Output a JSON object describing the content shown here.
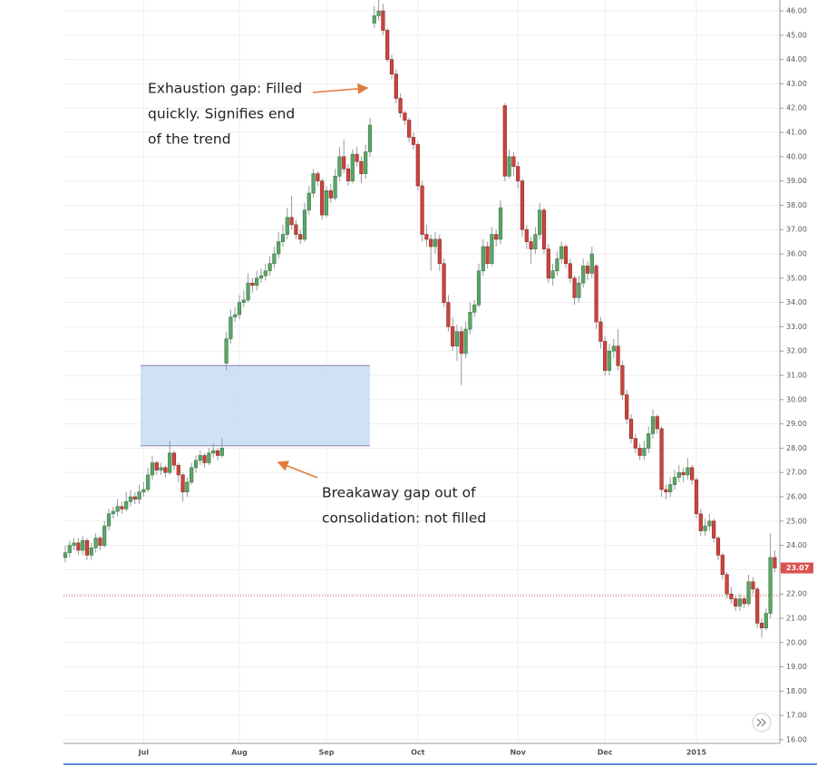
{
  "chart_data": {
    "type": "candlestick",
    "ylim": [
      15.85,
      46.45
    ],
    "yticks": [
      {
        "value": 16,
        "label": "16.00"
      },
      {
        "value": 17,
        "label": "17.00"
      },
      {
        "value": 18,
        "label": "18.00"
      },
      {
        "value": 19,
        "label": "19.00"
      },
      {
        "value": 20,
        "label": "20.00"
      },
      {
        "value": 21,
        "label": "21.00"
      },
      {
        "value": 22,
        "label": "22.00"
      },
      {
        "value": 23,
        "label": "23.00"
      },
      {
        "value": 24,
        "label": "24.00"
      },
      {
        "value": 25,
        "label": "25.00"
      },
      {
        "value": 26,
        "label": "26.00"
      },
      {
        "value": 27,
        "label": "27.00"
      },
      {
        "value": 28,
        "label": "28.00"
      },
      {
        "value": 29,
        "label": "29.00"
      },
      {
        "value": 30,
        "label": "30.00"
      },
      {
        "value": 31,
        "label": "31.00"
      },
      {
        "value": 32,
        "label": "32.00"
      },
      {
        "value": 33,
        "label": "33.00"
      },
      {
        "value": 34,
        "label": "34.00"
      },
      {
        "value": 35,
        "label": "35.00"
      },
      {
        "value": 36,
        "label": "36.00"
      },
      {
        "value": 37,
        "label": "37.00"
      },
      {
        "value": 38,
        "label": "38.00"
      },
      {
        "value": 39,
        "label": "39.00"
      },
      {
        "value": 40,
        "label": "40.00"
      },
      {
        "value": 41,
        "label": "41.00"
      },
      {
        "value": 42,
        "label": "42.00"
      },
      {
        "value": 43,
        "label": "43.00"
      },
      {
        "value": 44,
        "label": "44.00"
      },
      {
        "value": 45,
        "label": "45.00"
      },
      {
        "value": 46,
        "label": "46.00"
      }
    ],
    "grid": true,
    "categories": [
      null,
      null,
      null,
      null,
      null,
      null,
      null,
      null,
      null,
      null,
      null,
      null,
      null,
      null,
      null,
      null,
      null,
      null,
      "Jul",
      null,
      null,
      null,
      null,
      null,
      null,
      null,
      null,
      null,
      null,
      null,
      null,
      null,
      null,
      null,
      null,
      null,
      null,
      null,
      null,
      null,
      "Aug",
      null,
      null,
      null,
      null,
      null,
      null,
      null,
      null,
      null,
      null,
      null,
      null,
      null,
      null,
      null,
      null,
      null,
      null,
      null,
      "Sep",
      null,
      null,
      null,
      null,
      null,
      null,
      null,
      null,
      null,
      null,
      null,
      null,
      null,
      null,
      null,
      null,
      null,
      null,
      null,
      null,
      "Oct",
      null,
      null,
      null,
      null,
      null,
      null,
      null,
      null,
      null,
      null,
      null,
      null,
      null,
      null,
      null,
      null,
      null,
      null,
      null,
      null,
      null,
      null,
      "Nov",
      null,
      null,
      null,
      null,
      null,
      null,
      null,
      null,
      null,
      null,
      null,
      null,
      null,
      null,
      null,
      null,
      null,
      null,
      null,
      "Dec",
      null,
      null,
      null,
      null,
      null,
      null,
      null,
      null,
      null,
      null,
      null,
      null,
      null,
      null,
      null,
      null,
      null,
      null,
      null,
      null,
      "2015",
      null,
      null,
      null,
      null,
      null,
      null,
      null,
      null,
      null,
      null,
      null,
      null,
      null,
      null,
      null,
      null,
      null,
      null
    ],
    "up_color": "#5da46a",
    "down_color": "#c9453d",
    "ohlc": [
      [
        23.5,
        24.0,
        23.3,
        23.7
      ],
      [
        23.7,
        24.2,
        23.5,
        24.0
      ],
      [
        24.0,
        24.3,
        23.8,
        24.1
      ],
      [
        24.1,
        24.3,
        23.6,
        23.8
      ],
      [
        23.8,
        24.4,
        23.6,
        24.2
      ],
      [
        24.2,
        24.3,
        23.4,
        23.6
      ],
      [
        23.6,
        24.1,
        23.4,
        23.9
      ],
      [
        23.9,
        24.5,
        23.7,
        24.3
      ],
      [
        24.3,
        24.4,
        23.8,
        24.0
      ],
      [
        24.0,
        25.0,
        23.9,
        24.8
      ],
      [
        24.8,
        25.5,
        24.6,
        25.3
      ],
      [
        25.3,
        25.6,
        25.1,
        25.4
      ],
      [
        25.4,
        25.9,
        25.2,
        25.6
      ],
      [
        25.6,
        25.8,
        25.3,
        25.5
      ],
      [
        25.5,
        26.2,
        25.4,
        25.8
      ],
      [
        25.8,
        26.3,
        25.6,
        26.0
      ],
      [
        26.0,
        26.2,
        25.7,
        25.9
      ],
      [
        25.9,
        26.5,
        25.7,
        26.2
      ],
      [
        26.2,
        26.6,
        26.0,
        26.3
      ],
      [
        26.3,
        27.2,
        26.2,
        26.9
      ],
      [
        26.9,
        27.7,
        26.7,
        27.4
      ],
      [
        27.4,
        27.5,
        26.9,
        27.1
      ],
      [
        27.1,
        27.4,
        26.9,
        27.2
      ],
      [
        27.2,
        27.3,
        26.8,
        27.0
      ],
      [
        27.0,
        28.3,
        26.9,
        27.8
      ],
      [
        27.8,
        27.9,
        27.1,
        27.3
      ],
      [
        27.3,
        27.4,
        26.6,
        26.9
      ],
      [
        26.9,
        27.0,
        25.8,
        26.2
      ],
      [
        26.2,
        26.8,
        26.0,
        26.6
      ],
      [
        26.6,
        27.4,
        26.5,
        27.2
      ],
      [
        27.2,
        27.7,
        27.0,
        27.5
      ],
      [
        27.5,
        27.9,
        27.3,
        27.7
      ],
      [
        27.7,
        27.8,
        27.2,
        27.4
      ],
      [
        27.4,
        28.0,
        27.3,
        27.8
      ],
      [
        27.8,
        28.2,
        27.6,
        27.9
      ],
      [
        27.9,
        28.0,
        27.5,
        27.7
      ],
      [
        27.7,
        28.4,
        27.6,
        28.0
      ],
      [
        31.5,
        32.8,
        31.2,
        32.5
      ],
      [
        32.5,
        33.7,
        32.3,
        33.4
      ],
      [
        33.4,
        33.8,
        33.2,
        33.5
      ],
      [
        33.5,
        34.3,
        33.3,
        34.0
      ],
      [
        34.0,
        34.5,
        33.8,
        34.1
      ],
      [
        34.1,
        35.2,
        34.0,
        34.8
      ],
      [
        34.8,
        35.0,
        34.4,
        34.7
      ],
      [
        34.7,
        35.3,
        34.5,
        35.0
      ],
      [
        35.0,
        35.4,
        34.8,
        35.1
      ],
      [
        35.1,
        35.6,
        34.9,
        35.3
      ],
      [
        35.3,
        35.9,
        35.1,
        35.6
      ],
      [
        35.6,
        36.3,
        35.4,
        36.0
      ],
      [
        36.0,
        36.9,
        35.8,
        36.5
      ],
      [
        36.5,
        37.2,
        36.3,
        36.8
      ],
      [
        36.8,
        37.9,
        36.6,
        37.5
      ],
      [
        37.5,
        38.4,
        37.0,
        37.2
      ],
      [
        37.2,
        37.4,
        36.6,
        36.8
      ],
      [
        36.8,
        37.0,
        36.4,
        36.6
      ],
      [
        36.6,
        38.1,
        36.5,
        37.8
      ],
      [
        37.8,
        38.8,
        37.6,
        38.5
      ],
      [
        38.5,
        39.5,
        38.3,
        39.3
      ],
      [
        39.3,
        39.4,
        38.8,
        39.0
      ],
      [
        39.0,
        39.1,
        37.4,
        37.6
      ],
      [
        37.6,
        38.8,
        37.5,
        38.6
      ],
      [
        38.6,
        38.9,
        38.1,
        38.3
      ],
      [
        38.3,
        39.5,
        38.2,
        39.2
      ],
      [
        39.2,
        40.4,
        39.0,
        40.0
      ],
      [
        40.0,
        40.7,
        39.3,
        39.5
      ],
      [
        39.5,
        39.7,
        38.8,
        39.0
      ],
      [
        39.0,
        40.3,
        38.9,
        40.1
      ],
      [
        40.1,
        40.4,
        39.6,
        39.8
      ],
      [
        39.8,
        40.0,
        38.9,
        39.3
      ],
      [
        39.3,
        40.5,
        39.1,
        40.2
      ],
      [
        40.2,
        41.6,
        40.0,
        41.3
      ],
      [
        45.5,
        46.2,
        45.3,
        45.8
      ],
      [
        45.8,
        46.6,
        45.6,
        46.0
      ],
      [
        46.0,
        46.3,
        45.0,
        45.2
      ],
      [
        45.2,
        45.3,
        43.9,
        44.0
      ],
      [
        44.0,
        44.2,
        43.2,
        43.4
      ],
      [
        43.4,
        43.6,
        42.2,
        42.4
      ],
      [
        42.4,
        42.6,
        41.6,
        41.8
      ],
      [
        41.8,
        41.9,
        41.3,
        41.5
      ],
      [
        41.5,
        41.6,
        40.6,
        40.8
      ],
      [
        40.8,
        41.0,
        40.3,
        40.5
      ],
      [
        40.5,
        40.6,
        38.6,
        38.8
      ],
      [
        38.8,
        39.0,
        36.5,
        36.8
      ],
      [
        36.8,
        37.2,
        36.3,
        36.6
      ],
      [
        36.6,
        36.8,
        35.3,
        36.3
      ],
      [
        36.3,
        36.9,
        36.0,
        36.6
      ],
      [
        36.6,
        36.8,
        35.3,
        35.6
      ],
      [
        35.6,
        35.8,
        33.8,
        34.0
      ],
      [
        34.0,
        34.3,
        32.8,
        33.0
      ],
      [
        33.0,
        33.4,
        32.0,
        32.2
      ],
      [
        32.2,
        33.1,
        31.6,
        32.8
      ],
      [
        32.8,
        33.0,
        30.6,
        31.9
      ],
      [
        31.9,
        33.2,
        31.7,
        32.9
      ],
      [
        32.9,
        34.0,
        32.7,
        33.6
      ],
      [
        33.6,
        34.1,
        33.4,
        33.9
      ],
      [
        33.9,
        35.6,
        33.8,
        35.3
      ],
      [
        35.3,
        36.6,
        35.1,
        36.3
      ],
      [
        36.3,
        36.5,
        35.4,
        35.6
      ],
      [
        35.6,
        37.1,
        35.5,
        36.8
      ],
      [
        36.8,
        37.0,
        36.3,
        36.6
      ],
      [
        36.6,
        38.2,
        36.4,
        37.9
      ],
      [
        42.1,
        42.2,
        39.0,
        39.2
      ],
      [
        39.2,
        40.3,
        39.1,
        40.0
      ],
      [
        40.0,
        40.2,
        39.2,
        39.6
      ],
      [
        39.6,
        39.8,
        38.7,
        39.0
      ],
      [
        39.0,
        39.1,
        36.7,
        37.0
      ],
      [
        37.0,
        37.2,
        36.2,
        36.5
      ],
      [
        36.5,
        36.7,
        35.6,
        36.2
      ],
      [
        36.2,
        37.1,
        36.0,
        36.8
      ],
      [
        36.8,
        38.1,
        36.6,
        37.8
      ],
      [
        37.8,
        37.9,
        36.0,
        36.2
      ],
      [
        36.2,
        36.4,
        34.8,
        35.0
      ],
      [
        35.0,
        35.6,
        34.7,
        35.3
      ],
      [
        35.3,
        36.1,
        35.1,
        35.8
      ],
      [
        35.8,
        36.5,
        35.6,
        36.3
      ],
      [
        36.3,
        36.4,
        35.4,
        35.6
      ],
      [
        35.6,
        35.8,
        34.8,
        35.0
      ],
      [
        35.0,
        35.1,
        33.9,
        34.2
      ],
      [
        34.2,
        35.1,
        34.0,
        34.8
      ],
      [
        34.8,
        35.8,
        34.6,
        35.5
      ],
      [
        35.5,
        35.7,
        34.9,
        35.2
      ],
      [
        35.2,
        36.3,
        35.0,
        36.0
      ],
      [
        35.5,
        35.6,
        32.9,
        33.2
      ],
      [
        33.2,
        33.4,
        32.1,
        32.4
      ],
      [
        32.4,
        32.6,
        31.0,
        31.2
      ],
      [
        31.2,
        32.3,
        31.0,
        32.0
      ],
      [
        32.0,
        32.5,
        31.7,
        32.2
      ],
      [
        32.2,
        32.9,
        31.2,
        31.4
      ],
      [
        31.4,
        31.6,
        30.0,
        30.2
      ],
      [
        30.2,
        30.4,
        29.0,
        29.2
      ],
      [
        29.2,
        29.4,
        28.2,
        28.4
      ],
      [
        28.4,
        28.6,
        27.8,
        28.0
      ],
      [
        28.0,
        28.2,
        27.5,
        27.7
      ],
      [
        27.7,
        28.3,
        27.5,
        28.0
      ],
      [
        28.0,
        28.9,
        27.8,
        28.6
      ],
      [
        28.6,
        29.6,
        28.4,
        29.3
      ],
      [
        29.3,
        29.4,
        28.6,
        28.8
      ],
      [
        28.8,
        28.9,
        26.0,
        26.3
      ],
      [
        26.3,
        26.5,
        25.9,
        26.2
      ],
      [
        26.2,
        26.8,
        26.0,
        26.5
      ],
      [
        26.5,
        27.1,
        26.3,
        26.8
      ],
      [
        26.8,
        27.3,
        26.6,
        27.0
      ],
      [
        27.0,
        27.2,
        26.6,
        26.9
      ],
      [
        26.9,
        27.6,
        26.7,
        27.2
      ],
      [
        27.2,
        27.3,
        26.5,
        26.7
      ],
      [
        26.7,
        26.8,
        25.1,
        25.3
      ],
      [
        25.3,
        25.5,
        24.4,
        24.6
      ],
      [
        24.6,
        25.1,
        24.4,
        24.8
      ],
      [
        24.8,
        25.3,
        24.6,
        25.0
      ],
      [
        25.0,
        25.1,
        24.1,
        24.3
      ],
      [
        24.3,
        24.4,
        23.4,
        23.6
      ],
      [
        23.6,
        23.7,
        22.6,
        22.8
      ],
      [
        22.8,
        22.9,
        21.8,
        22.0
      ],
      [
        22.0,
        22.3,
        21.6,
        21.8
      ],
      [
        21.8,
        21.9,
        21.3,
        21.5
      ],
      [
        21.5,
        22.0,
        21.3,
        21.8
      ],
      [
        21.8,
        21.9,
        21.4,
        21.6
      ],
      [
        21.6,
        22.8,
        21.5,
        22.5
      ],
      [
        22.5,
        22.7,
        22.0,
        22.2
      ],
      [
        22.2,
        22.3,
        20.6,
        20.8
      ],
      [
        20.8,
        21.0,
        20.2,
        20.6
      ],
      [
        20.6,
        21.4,
        20.5,
        21.2
      ],
      [
        21.2,
        24.5,
        21.0,
        23.5
      ],
      [
        23.5,
        23.8,
        22.9,
        23.07
      ]
    ],
    "last_price": 23.07,
    "reference_line": 21.93,
    "gap_zone": {
      "low": 28.1,
      "high": 31.4
    },
    "annotations": [
      {
        "lines": [
          "Exhaustion gap: Filled",
          "quickly.  Signifies  end",
          "of the trend"
        ]
      },
      {
        "lines": [
          "Breakaway gap out of",
          "consolidation: not filled"
        ]
      }
    ]
  }
}
